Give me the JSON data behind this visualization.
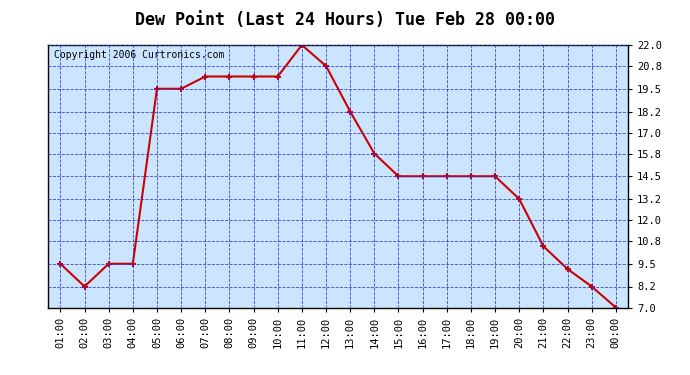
{
  "title": "Dew Point (Last 24 Hours) Tue Feb 28 00:00",
  "copyright": "Copyright 2006 Curtronics.com",
  "x_labels": [
    "01:00",
    "02:00",
    "03:00",
    "04:00",
    "05:00",
    "06:00",
    "07:00",
    "08:00",
    "09:00",
    "10:00",
    "11:00",
    "12:00",
    "13:00",
    "14:00",
    "15:00",
    "16:00",
    "17:00",
    "18:00",
    "19:00",
    "20:00",
    "21:00",
    "22:00",
    "23:00",
    "00:00"
  ],
  "y_values": [
    9.5,
    8.2,
    9.5,
    9.5,
    19.5,
    19.5,
    20.2,
    20.2,
    20.2,
    20.2,
    22.0,
    20.8,
    18.2,
    15.8,
    14.5,
    14.5,
    14.5,
    14.5,
    14.5,
    13.2,
    10.5,
    9.2,
    8.2,
    7.0
  ],
  "ylim_min": 7.0,
  "ylim_max": 22.0,
  "yticks": [
    7.0,
    8.2,
    9.5,
    10.8,
    12.0,
    13.2,
    14.5,
    15.8,
    17.0,
    18.2,
    19.5,
    20.8,
    22.0
  ],
  "line_color": "#cc0000",
  "marker_color": "#cc0000",
  "bg_color": "#cce5ff",
  "grid_color": "#3333cc",
  "title_fontsize": 12,
  "copyright_fontsize": 7,
  "tick_fontsize": 7.5,
  "fig_width": 6.9,
  "fig_height": 3.75,
  "fig_dpi": 100
}
